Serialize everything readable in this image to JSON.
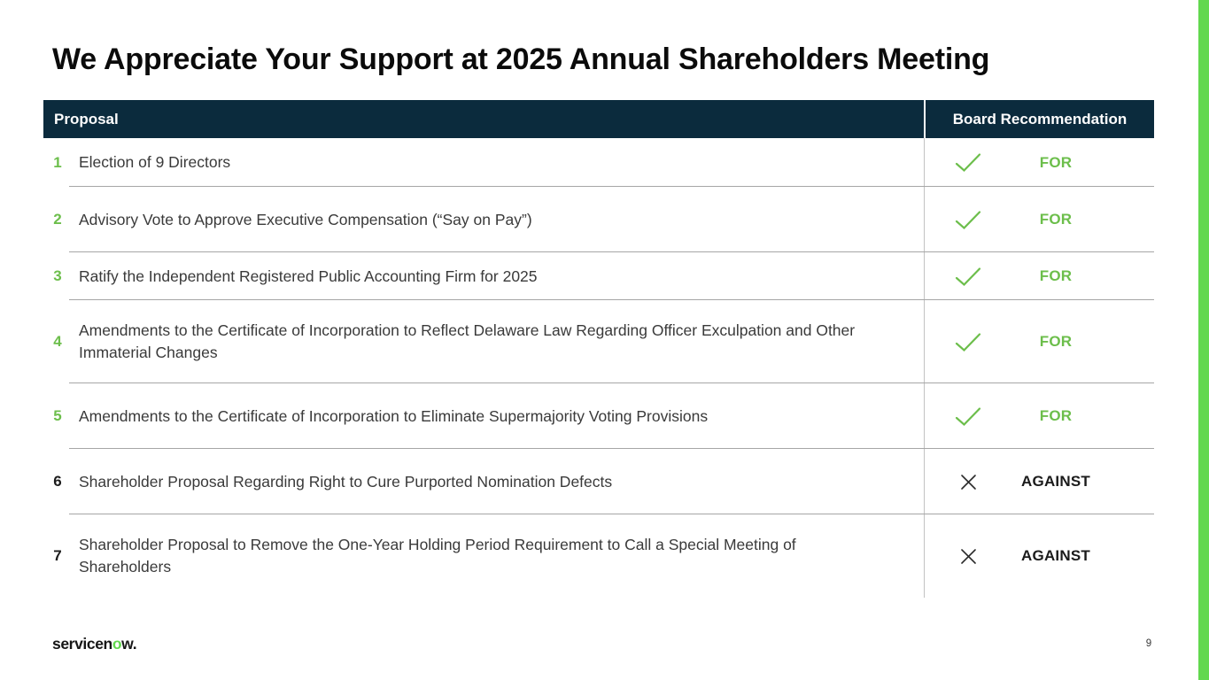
{
  "slide": {
    "title": "We Appreciate Your Support at 2025 Annual Shareholders Meeting",
    "page_number": "9"
  },
  "logo": {
    "part1": "servicen",
    "part2": "o",
    "part3": "w."
  },
  "table": {
    "headers": {
      "proposal": "Proposal",
      "recommendation": "Board Recommendation"
    },
    "rows": [
      {
        "number": "1",
        "text": "Election of 9 Directors",
        "recommendation": "FOR",
        "vote": "for",
        "icon": "check-icon"
      },
      {
        "number": "2",
        "text": "Advisory Vote to Approve Executive Compensation (“Say on Pay”)",
        "recommendation": "FOR",
        "vote": "for",
        "icon": "check-icon"
      },
      {
        "number": "3",
        "text": "Ratify the Independent Registered Public Accounting Firm for 2025",
        "recommendation": "FOR",
        "vote": "for",
        "icon": "check-icon"
      },
      {
        "number": "4",
        "text": "Amendments to the Certificate of Incorporation to Reflect Delaware Law Regarding Officer Exculpation and Other Immaterial Changes",
        "recommendation": "FOR",
        "vote": "for",
        "icon": "check-icon"
      },
      {
        "number": "5",
        "text": "Amendments to the Certificate of Incorporation to Eliminate Supermajority Voting Provisions",
        "recommendation": "FOR",
        "vote": "for",
        "icon": "check-icon"
      },
      {
        "number": "6",
        "text": "Shareholder Proposal Regarding Right to Cure Purported Nomination Defects",
        "recommendation": "AGAINST",
        "vote": "against",
        "icon": "x-icon"
      },
      {
        "number": "7",
        "text": "Shareholder Proposal to Remove the One-Year Holding Period Requirement to Call a Special Meeting of Shareholders",
        "recommendation": "AGAINST",
        "vote": "against",
        "icon": "x-icon"
      }
    ]
  },
  "colors": {
    "header_bg": "#0B2B3D",
    "brand_green": "#6CBE4B",
    "accent_bar": "#62D84E",
    "against_text": "#1B1B1B"
  }
}
